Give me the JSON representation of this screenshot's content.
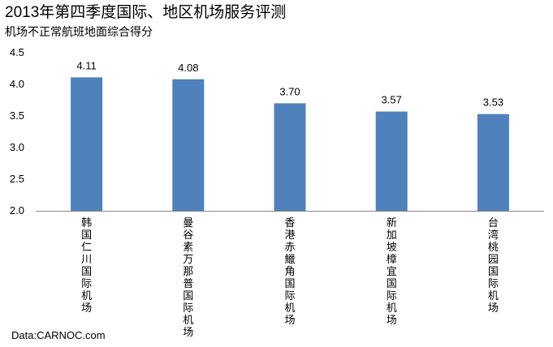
{
  "chart_data": {
    "type": "bar",
    "title": "2013年第四季度国际、地区机场服务评测",
    "subtitle": "机场不正常航班地面综合得分",
    "source": "Data:CARNOC.com",
    "categories": [
      "韩国仁川国际机场",
      "曼谷素万那普国际机场",
      "香港赤鱲角国际机场",
      "新加坡樟宜国际机场",
      "台湾桃园国际机场"
    ],
    "values": [
      4.11,
      4.08,
      3.7,
      3.57,
      3.53
    ],
    "value_labels": [
      "4.11",
      "4.08",
      "3.70",
      "3.57",
      "3.53"
    ],
    "ylim": [
      2.0,
      4.5
    ],
    "yticks": [
      "2.0",
      "2.5",
      "3.0",
      "3.5",
      "4.0",
      "4.5"
    ],
    "bar_color": "#4f81bd",
    "grid": false,
    "legend": "none"
  }
}
